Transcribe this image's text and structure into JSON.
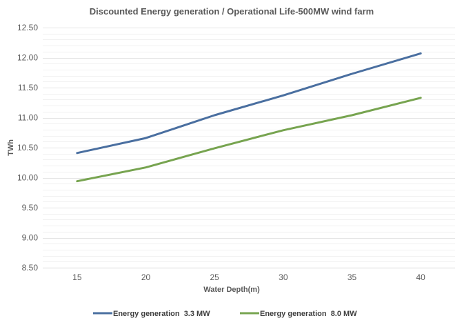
{
  "chart_data": {
    "type": "line",
    "title": "Discounted Energy generation / Operational Life-500MW wind farm",
    "xlabel": "Water Depth(m)",
    "ylabel": "TWh",
    "categories": [
      "15",
      "20",
      "25",
      "30",
      "35",
      "40"
    ],
    "ylim": [
      8.5,
      12.5
    ],
    "y_major_step": 0.5,
    "y_minor_step": 0.1,
    "y_tick_labels": [
      "8.50",
      "9.00",
      "9.50",
      "10.00",
      "10.50",
      "11.00",
      "11.50",
      "12.00",
      "12.50"
    ],
    "grid": true,
    "legend_position": "bottom",
    "series": [
      {
        "name": "Energy generation  3.3 MW",
        "color": "#4A6FA0",
        "values": [
          10.41,
          10.66,
          11.04,
          11.37,
          11.73,
          12.07
        ]
      },
      {
        "name": "Energy generation  8.0 MW",
        "color": "#77A450",
        "values": [
          9.94,
          10.17,
          10.49,
          10.79,
          11.04,
          11.33
        ]
      }
    ]
  }
}
